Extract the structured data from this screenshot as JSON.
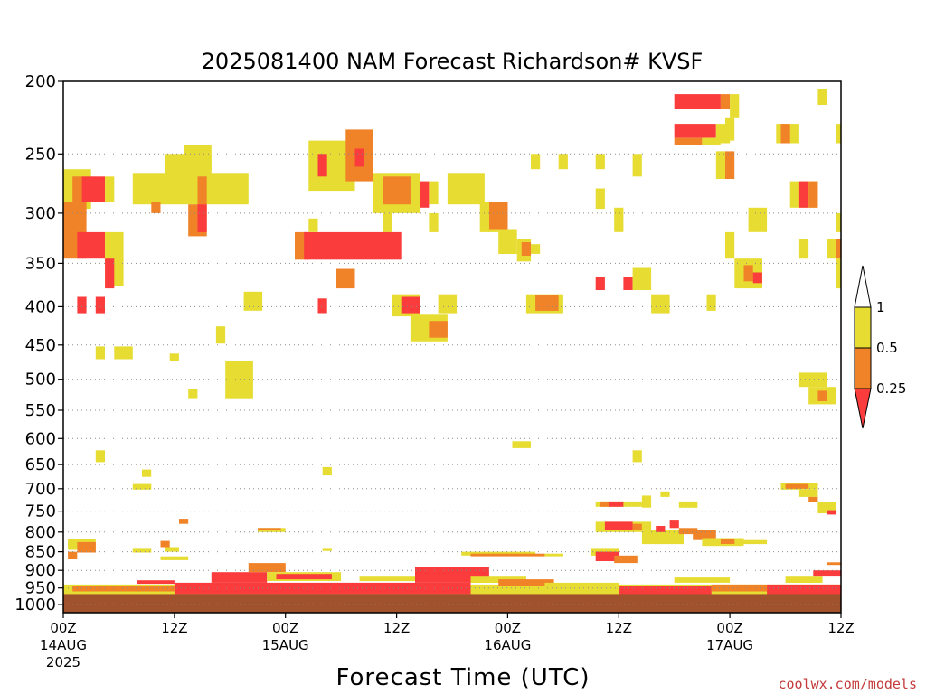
{
  "chart_data": {
    "type": "heatmap",
    "title": "2025081400 NAM Forecast Richardson# KVSF",
    "xlabel": "Forecast Time (UTC)",
    "ylabel": "",
    "credit": "coolwx.com/models",
    "x_unit": "forecast hour",
    "xlim": [
      0,
      84
    ],
    "y_unit": "hPa",
    "ylim": [
      1025,
      200
    ],
    "y_scale": "log",
    "y_ticks": [
      "200",
      "250",
      "300",
      "350",
      "400",
      "450",
      "500",
      "550",
      "600",
      "650",
      "700",
      "750",
      "800",
      "850",
      "900",
      "950",
      "1000"
    ],
    "gridlines": "dotted horizontal at each pressure tick",
    "x_ticks": [
      {
        "hour": 0,
        "time": "00Z",
        "date": "14AUG",
        "year": "2025"
      },
      {
        "hour": 12,
        "time": "12Z",
        "date": "",
        "year": ""
      },
      {
        "hour": 24,
        "time": "00Z",
        "date": "15AUG",
        "year": ""
      },
      {
        "hour": 36,
        "time": "12Z",
        "date": "",
        "year": ""
      },
      {
        "hour": 48,
        "time": "00Z",
        "date": "16AUG",
        "year": ""
      },
      {
        "hour": 60,
        "time": "12Z",
        "date": "",
        "year": ""
      },
      {
        "hour": 72,
        "time": "00Z",
        "date": "17AUG",
        "year": ""
      },
      {
        "hour": 84,
        "time": "12Z",
        "date": "",
        "year": ""
      }
    ],
    "color_scale": {
      "thresholds": [
        "1",
        "0.5",
        "0.25"
      ],
      "bins": [
        {
          "name": "Ri > 1",
          "color": "#ffffff"
        },
        {
          "name": "0.5 - 1",
          "color": "#e6dc32"
        },
        {
          "name": "0.25 - 0.5",
          "color": "#f08228"
        },
        {
          "name": "< 0.25",
          "color": "#fa3c3c"
        }
      ]
    },
    "ground_color": "#a0522d",
    "ground_level_hPa": 968,
    "patches": [
      {
        "h0": 0,
        "h1": 3,
        "p0": 262,
        "p1": 296,
        "c": "y"
      },
      {
        "h0": 1,
        "h1": 2,
        "p0": 268,
        "p1": 300,
        "c": "o"
      },
      {
        "h0": 2,
        "h1": 4.5,
        "p0": 268,
        "p1": 290,
        "c": "r"
      },
      {
        "h0": 4.5,
        "h1": 5.5,
        "p0": 268,
        "p1": 290,
        "c": "y"
      },
      {
        "h0": 0,
        "h1": 2.5,
        "p0": 290,
        "p1": 345,
        "c": "o"
      },
      {
        "h0": 1.5,
        "h1": 4.5,
        "p0": 318,
        "p1": 345,
        "c": "r"
      },
      {
        "h0": 4.5,
        "h1": 6.5,
        "p0": 318,
        "p1": 375,
        "c": "y"
      },
      {
        "h0": 4.5,
        "h1": 5.5,
        "p0": 345,
        "p1": 378,
        "c": "r"
      },
      {
        "h0": 1.5,
        "h1": 2.5,
        "p0": 388,
        "p1": 408,
        "c": "r"
      },
      {
        "h0": 3.5,
        "h1": 4.5,
        "p0": 388,
        "p1": 408,
        "c": "r"
      },
      {
        "h0": 3.5,
        "h1": 4.5,
        "p0": 452,
        "p1": 470,
        "c": "y"
      },
      {
        "h0": 5.5,
        "h1": 7.5,
        "p0": 452,
        "p1": 470,
        "c": "y"
      },
      {
        "h0": 7.5,
        "h1": 15,
        "p0": 265,
        "p1": 292,
        "c": "y"
      },
      {
        "h0": 11,
        "h1": 16,
        "p0": 250,
        "p1": 278,
        "c": "y"
      },
      {
        "h0": 13,
        "h1": 16,
        "p0": 243,
        "p1": 262,
        "c": "y"
      },
      {
        "h0": 15,
        "h1": 20,
        "p0": 265,
        "p1": 292,
        "c": "y"
      },
      {
        "h0": 14.5,
        "h1": 15.5,
        "p0": 268,
        "p1": 292,
        "c": "o"
      },
      {
        "h0": 13.5,
        "h1": 15.5,
        "p0": 292,
        "p1": 322,
        "c": "o"
      },
      {
        "h0": 14.5,
        "h1": 15.5,
        "p0": 292,
        "p1": 318,
        "c": "r"
      },
      {
        "h0": 9.5,
        "h1": 10.5,
        "p0": 290,
        "p1": 300,
        "c": "o"
      },
      {
        "h0": 19.5,
        "h1": 21.5,
        "p0": 382,
        "p1": 405,
        "c": "y"
      },
      {
        "h0": 16.5,
        "h1": 17.5,
        "p0": 425,
        "p1": 448,
        "c": "y"
      },
      {
        "h0": 11.5,
        "h1": 12.5,
        "p0": 462,
        "p1": 472,
        "c": "y"
      },
      {
        "h0": 17.5,
        "h1": 20.5,
        "p0": 472,
        "p1": 530,
        "c": "y"
      },
      {
        "h0": 13.5,
        "h1": 14.5,
        "p0": 515,
        "p1": 530,
        "c": "y"
      },
      {
        "h0": 3.5,
        "h1": 4.5,
        "p0": 622,
        "p1": 645,
        "c": "y"
      },
      {
        "h0": 8.5,
        "h1": 9.5,
        "p0": 660,
        "p1": 675,
        "c": "y"
      },
      {
        "h0": 7.5,
        "h1": 9.5,
        "p0": 690,
        "p1": 702,
        "c": "y"
      },
      {
        "h0": 12.5,
        "h1": 13.5,
        "p0": 768,
        "p1": 780,
        "c": "o"
      },
      {
        "h0": 26.5,
        "h1": 31.5,
        "p0": 240,
        "p1": 280,
        "c": "y"
      },
      {
        "h0": 27.5,
        "h1": 28.5,
        "p0": 250,
        "p1": 268,
        "c": "r"
      },
      {
        "h0": 30.5,
        "h1": 33.5,
        "p0": 232,
        "p1": 272,
        "c": "o"
      },
      {
        "h0": 31.5,
        "h1": 32.5,
        "p0": 246,
        "p1": 260,
        "c": "r"
      },
      {
        "h0": 33.5,
        "h1": 38.5,
        "p0": 265,
        "p1": 300,
        "c": "y"
      },
      {
        "h0": 34.5,
        "h1": 37.5,
        "p0": 268,
        "p1": 292,
        "c": "o"
      },
      {
        "h0": 38.5,
        "h1": 39.5,
        "p0": 272,
        "p1": 295,
        "c": "r"
      },
      {
        "h0": 39.5,
        "h1": 40.5,
        "p0": 272,
        "p1": 292,
        "c": "y"
      },
      {
        "h0": 34.5,
        "h1": 35.5,
        "p0": 300,
        "p1": 318,
        "c": "y"
      },
      {
        "h0": 25,
        "h1": 26.5,
        "p0": 318,
        "p1": 346,
        "c": "o"
      },
      {
        "h0": 26,
        "h1": 36.5,
        "p0": 318,
        "p1": 346,
        "c": "r"
      },
      {
        "h0": 26.5,
        "h1": 27.5,
        "p0": 305,
        "p1": 318,
        "c": "y"
      },
      {
        "h0": 29.5,
        "h1": 31.5,
        "p0": 356,
        "p1": 378,
        "c": "o"
      },
      {
        "h0": 27.5,
        "h1": 28.5,
        "p0": 390,
        "p1": 408,
        "c": "r"
      },
      {
        "h0": 28,
        "h1": 29,
        "p0": 655,
        "p1": 672,
        "c": "y"
      },
      {
        "h0": 35.5,
        "h1": 38.5,
        "p0": 385,
        "p1": 412,
        "c": "y"
      },
      {
        "h0": 36.5,
        "h1": 38.5,
        "p0": 388,
        "p1": 408,
        "c": "r"
      },
      {
        "h0": 37.5,
        "h1": 41.5,
        "p0": 410,
        "p1": 445,
        "c": "y"
      },
      {
        "h0": 39.5,
        "h1": 41.5,
        "p0": 418,
        "p1": 440,
        "c": "o"
      },
      {
        "h0": 40.5,
        "h1": 42.5,
        "p0": 385,
        "p1": 408,
        "c": "y"
      },
      {
        "h0": 39.5,
        "h1": 40.5,
        "p0": 300,
        "p1": 318,
        "c": "y"
      },
      {
        "h0": 41.5,
        "h1": 45.5,
        "p0": 265,
        "p1": 292,
        "c": "y"
      },
      {
        "h0": 45,
        "h1": 47,
        "p0": 290,
        "p1": 318,
        "c": "y"
      },
      {
        "h0": 46,
        "h1": 48,
        "p0": 290,
        "p1": 315,
        "c": "o"
      },
      {
        "h0": 47,
        "h1": 49,
        "p0": 315,
        "p1": 340,
        "c": "y"
      },
      {
        "h0": 49,
        "h1": 50.5,
        "p0": 325,
        "p1": 348,
        "c": "y"
      },
      {
        "h0": 49.5,
        "h1": 50.5,
        "p0": 328,
        "p1": 342,
        "c": "o"
      },
      {
        "h0": 50.5,
        "h1": 51.5,
        "p0": 330,
        "p1": 340,
        "c": "y"
      },
      {
        "h0": 50,
        "h1": 54,
        "p0": 385,
        "p1": 408,
        "c": "y"
      },
      {
        "h0": 51,
        "h1": 53.5,
        "p0": 386,
        "p1": 405,
        "c": "o"
      },
      {
        "h0": 50.5,
        "h1": 51.5,
        "p0": 250,
        "p1": 262,
        "c": "y"
      },
      {
        "h0": 53.5,
        "h1": 54.5,
        "p0": 250,
        "p1": 262,
        "c": "y"
      },
      {
        "h0": 57.5,
        "h1": 58.5,
        "p0": 250,
        "p1": 262,
        "c": "y"
      },
      {
        "h0": 61.5,
        "h1": 62.5,
        "p0": 250,
        "p1": 268,
        "c": "y"
      },
      {
        "h0": 57.5,
        "h1": 58.5,
        "p0": 278,
        "p1": 296,
        "c": "y"
      },
      {
        "h0": 59.5,
        "h1": 60.5,
        "p0": 295,
        "p1": 318,
        "c": "y"
      },
      {
        "h0": 48.5,
        "h1": 50.5,
        "p0": 605,
        "p1": 618,
        "c": "y"
      },
      {
        "h0": 57.5,
        "h1": 58.5,
        "p0": 365,
        "p1": 380,
        "c": "r"
      },
      {
        "h0": 60.5,
        "h1": 61.5,
        "p0": 365,
        "p1": 380,
        "c": "r"
      },
      {
        "h0": 61.5,
        "h1": 63.5,
        "p0": 355,
        "p1": 380,
        "c": "y"
      },
      {
        "h0": 63.5,
        "h1": 65.5,
        "p0": 385,
        "p1": 408,
        "c": "y"
      },
      {
        "h0": 61.5,
        "h1": 62.5,
        "p0": 622,
        "p1": 645,
        "c": "y"
      },
      {
        "h0": 66,
        "h1": 71,
        "p0": 208,
        "p1": 218,
        "c": "r"
      },
      {
        "h0": 71,
        "h1": 72,
        "p0": 208,
        "p1": 218,
        "c": "o"
      },
      {
        "h0": 72,
        "h1": 73,
        "p0": 208,
        "p1": 224,
        "c": "y"
      },
      {
        "h0": 66,
        "h1": 70.5,
        "p0": 228,
        "p1": 238,
        "c": "r"
      },
      {
        "h0": 70.5,
        "h1": 72,
        "p0": 228,
        "p1": 242,
        "c": "y"
      },
      {
        "h0": 66,
        "h1": 69,
        "p0": 238,
        "p1": 243,
        "c": "o"
      },
      {
        "h0": 69,
        "h1": 71,
        "p0": 238,
        "p1": 243,
        "c": "y"
      },
      {
        "h0": 71.5,
        "h1": 72.5,
        "p0": 224,
        "p1": 240,
        "c": "y"
      },
      {
        "h0": 70.5,
        "h1": 71.5,
        "p0": 248,
        "p1": 270,
        "c": "y"
      },
      {
        "h0": 71.5,
        "h1": 72.5,
        "p0": 248,
        "p1": 270,
        "c": "o"
      },
      {
        "h0": 74,
        "h1": 76,
        "p0": 295,
        "p1": 318,
        "c": "y"
      },
      {
        "h0": 77,
        "h1": 79.5,
        "p0": 228,
        "p1": 242,
        "c": "y"
      },
      {
        "h0": 77.5,
        "h1": 78.5,
        "p0": 228,
        "p1": 242,
        "c": "o"
      },
      {
        "h0": 81.5,
        "h1": 82.5,
        "p0": 205,
        "p1": 215,
        "c": "y"
      },
      {
        "h0": 83.5,
        "h1": 84,
        "p0": 228,
        "p1": 242,
        "c": "y"
      },
      {
        "h0": 78.5,
        "h1": 81.5,
        "p0": 272,
        "p1": 295,
        "c": "y"
      },
      {
        "h0": 79.5,
        "h1": 80.5,
        "p0": 272,
        "p1": 295,
        "c": "r"
      },
      {
        "h0": 80.5,
        "h1": 81.5,
        "p0": 272,
        "p1": 295,
        "c": "o"
      },
      {
        "h0": 71.5,
        "h1": 72.5,
        "p0": 318,
        "p1": 345,
        "c": "y"
      },
      {
        "h0": 72.5,
        "h1": 75.5,
        "p0": 345,
        "p1": 378,
        "c": "y"
      },
      {
        "h0": 73.5,
        "h1": 74.5,
        "p0": 352,
        "p1": 370,
        "c": "o"
      },
      {
        "h0": 74.5,
        "h1": 75.5,
        "p0": 360,
        "p1": 372,
        "c": "r"
      },
      {
        "h0": 69.5,
        "h1": 70.5,
        "p0": 385,
        "p1": 405,
        "c": "y"
      },
      {
        "h0": 79.5,
        "h1": 80.5,
        "p0": 325,
        "p1": 345,
        "c": "y"
      },
      {
        "h0": 82.5,
        "h1": 84,
        "p0": 325,
        "p1": 345,
        "c": "y"
      },
      {
        "h0": 83.5,
        "h1": 84,
        "p0": 300,
        "p1": 318,
        "c": "y"
      },
      {
        "h0": 83.5,
        "h1": 84,
        "p0": 325,
        "p1": 345,
        "c": "o"
      },
      {
        "h0": 83.5,
        "h1": 84,
        "p0": 345,
        "p1": 378,
        "c": "y"
      },
      {
        "h0": 79.5,
        "h1": 82.5,
        "p0": 490,
        "p1": 512,
        "c": "y"
      },
      {
        "h0": 80.5,
        "h1": 83.5,
        "p0": 512,
        "p1": 540,
        "c": "y"
      },
      {
        "h0": 81.5,
        "h1": 82.5,
        "p0": 518,
        "p1": 535,
        "c": "o"
      },
      {
        "h0": 77.5,
        "h1": 81.5,
        "p0": 688,
        "p1": 702,
        "c": "y"
      },
      {
        "h0": 78,
        "h1": 80.5,
        "p0": 690,
        "p1": 700,
        "c": "o"
      },
      {
        "h0": 79.5,
        "h1": 81.5,
        "p0": 702,
        "p1": 718,
        "c": "y"
      },
      {
        "h0": 80.5,
        "h1": 81.5,
        "p0": 718,
        "p1": 730,
        "c": "o"
      },
      {
        "h0": 81.5,
        "h1": 83.5,
        "p0": 730,
        "p1": 755,
        "c": "y"
      },
      {
        "h0": 82.5,
        "h1": 83.5,
        "p0": 748,
        "p1": 758,
        "c": "r"
      },
      {
        "h0": 57.5,
        "h1": 62.5,
        "p0": 728,
        "p1": 740,
        "c": "y"
      },
      {
        "h0": 58,
        "h1": 59,
        "p0": 728,
        "p1": 740,
        "c": "o"
      },
      {
        "h0": 59,
        "h1": 60.5,
        "p0": 728,
        "p1": 740,
        "c": "r"
      },
      {
        "h0": 62.5,
        "h1": 63.5,
        "p0": 715,
        "p1": 742,
        "c": "y"
      },
      {
        "h0": 64.5,
        "h1": 65.5,
        "p0": 706,
        "p1": 718,
        "c": "y"
      },
      {
        "h0": 66.5,
        "h1": 68.5,
        "p0": 728,
        "p1": 742,
        "c": "y"
      },
      {
        "h0": 57.5,
        "h1": 63.5,
        "p0": 775,
        "p1": 800,
        "c": "y"
      },
      {
        "h0": 58.5,
        "h1": 61.5,
        "p0": 775,
        "p1": 795,
        "c": "r"
      },
      {
        "h0": 61.5,
        "h1": 62.5,
        "p0": 780,
        "p1": 795,
        "c": "o"
      },
      {
        "h0": 62.5,
        "h1": 67,
        "p0": 795,
        "p1": 830,
        "c": "y"
      },
      {
        "h0": 64,
        "h1": 65,
        "p0": 785,
        "p1": 800,
        "c": "r"
      },
      {
        "h0": 65.5,
        "h1": 66.5,
        "p0": 770,
        "p1": 790,
        "c": "r"
      },
      {
        "h0": 66.5,
        "h1": 68.5,
        "p0": 790,
        "p1": 805,
        "c": "o"
      },
      {
        "h0": 68,
        "h1": 70.5,
        "p0": 795,
        "p1": 820,
        "c": "o"
      },
      {
        "h0": 69,
        "h1": 73.5,
        "p0": 815,
        "p1": 835,
        "c": "y"
      },
      {
        "h0": 71,
        "h1": 72.5,
        "p0": 818,
        "p1": 830,
        "c": "o"
      },
      {
        "h0": 73.5,
        "h1": 76,
        "p0": 820,
        "p1": 830,
        "c": "y"
      },
      {
        "h0": 57,
        "h1": 60,
        "p0": 840,
        "p1": 860,
        "c": "y"
      },
      {
        "h0": 57.5,
        "h1": 60,
        "p0": 850,
        "p1": 875,
        "c": "r"
      },
      {
        "h0": 59.5,
        "h1": 62,
        "p0": 860,
        "p1": 880,
        "c": "o"
      },
      {
        "h0": 0.5,
        "h1": 3.5,
        "p0": 818,
        "p1": 845,
        "c": "y"
      },
      {
        "h0": 1.5,
        "h1": 3.5,
        "p0": 825,
        "p1": 852,
        "c": "o"
      },
      {
        "h0": 0.5,
        "h1": 1.5,
        "p0": 850,
        "p1": 870,
        "c": "o"
      },
      {
        "h0": 7.5,
        "h1": 9.5,
        "p0": 840,
        "p1": 852,
        "c": "y"
      },
      {
        "h0": 10.5,
        "h1": 11.5,
        "p0": 822,
        "p1": 838,
        "c": "o"
      },
      {
        "h0": 11,
        "h1": 12.5,
        "p0": 838,
        "p1": 850,
        "c": "y"
      },
      {
        "h0": 10.5,
        "h1": 13.5,
        "p0": 862,
        "p1": 872,
        "c": "y"
      },
      {
        "h0": 21,
        "h1": 24,
        "p0": 790,
        "p1": 800,
        "c": "y"
      },
      {
        "h0": 21,
        "h1": 23.5,
        "p0": 790,
        "p1": 795,
        "c": "o"
      },
      {
        "h0": 28,
        "h1": 29,
        "p0": 840,
        "p1": 848,
        "c": "y"
      },
      {
        "h0": 43,
        "h1": 51,
        "p0": 850,
        "p1": 860,
        "c": "y"
      },
      {
        "h0": 44,
        "h1": 52,
        "p0": 855,
        "p1": 862,
        "c": "o"
      },
      {
        "h0": 52,
        "h1": 54,
        "p0": 855,
        "p1": 862,
        "c": "y"
      },
      {
        "h0": 82.5,
        "h1": 84,
        "p0": 878,
        "p1": 885,
        "c": "o"
      },
      {
        "h0": 0,
        "h1": 84,
        "p0": 940,
        "p1": 968,
        "c": "y"
      },
      {
        "h0": 1,
        "h1": 12,
        "p0": 945,
        "p1": 960,
        "c": "o"
      },
      {
        "h0": 12,
        "h1": 44,
        "p0": 935,
        "p1": 968,
        "c": "r"
      },
      {
        "h0": 16,
        "h1": 22,
        "p0": 905,
        "p1": 935,
        "c": "r"
      },
      {
        "h0": 20,
        "h1": 24,
        "p0": 880,
        "p1": 905,
        "c": "o"
      },
      {
        "h0": 22,
        "h1": 30,
        "p0": 905,
        "p1": 930,
        "c": "y"
      },
      {
        "h0": 23,
        "h1": 29,
        "p0": 910,
        "p1": 925,
        "c": "r"
      },
      {
        "h0": 38,
        "h1": 46,
        "p0": 890,
        "p1": 935,
        "c": "r"
      },
      {
        "h0": 44,
        "h1": 50,
        "p0": 915,
        "p1": 935,
        "c": "y"
      },
      {
        "h0": 47,
        "h1": 53,
        "p0": 925,
        "p1": 945,
        "c": "o"
      },
      {
        "h0": 52,
        "h1": 60,
        "p0": 935,
        "p1": 950,
        "c": "y"
      },
      {
        "h0": 60,
        "h1": 70,
        "p0": 945,
        "p1": 968,
        "c": "r"
      },
      {
        "h0": 70,
        "h1": 76,
        "p0": 940,
        "p1": 960,
        "c": "o"
      },
      {
        "h0": 76,
        "h1": 84,
        "p0": 940,
        "p1": 968,
        "c": "r"
      },
      {
        "h0": 78,
        "h1": 82,
        "p0": 915,
        "p1": 935,
        "c": "y"
      },
      {
        "h0": 81,
        "h1": 84,
        "p0": 900,
        "p1": 915,
        "c": "r"
      },
      {
        "h0": 66,
        "h1": 72,
        "p0": 920,
        "p1": 935,
        "c": "y"
      },
      {
        "h0": 32,
        "h1": 38,
        "p0": 915,
        "p1": 930,
        "c": "y"
      },
      {
        "h0": 8,
        "h1": 12,
        "p0": 928,
        "p1": 938,
        "c": "r"
      }
    ]
  }
}
